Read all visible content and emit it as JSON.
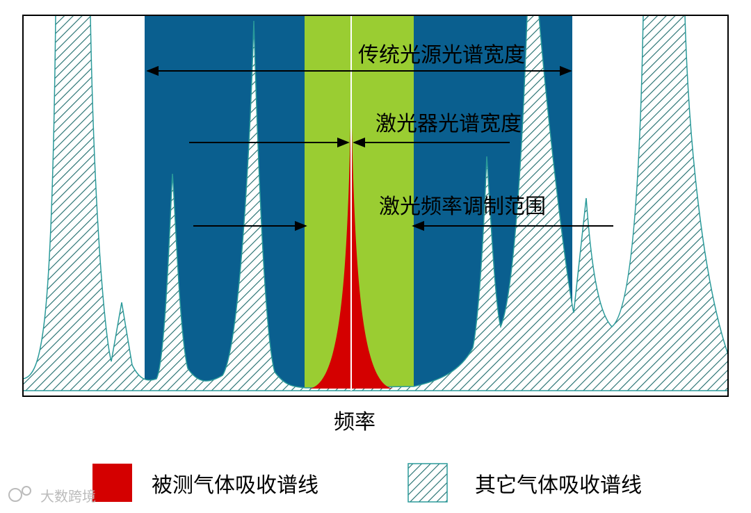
{
  "annotations": {
    "source_width": "传统光源光谱宽度",
    "laser_width": "激光器光谱宽度",
    "modulation_range": "激光频率调制范围"
  },
  "x_axis_label": "频率",
  "legend": [
    {
      "label": "被测气体吸收谱线"
    },
    {
      "label": "其它气体吸收谱线"
    }
  ],
  "watermark": "大数跨境"
}
